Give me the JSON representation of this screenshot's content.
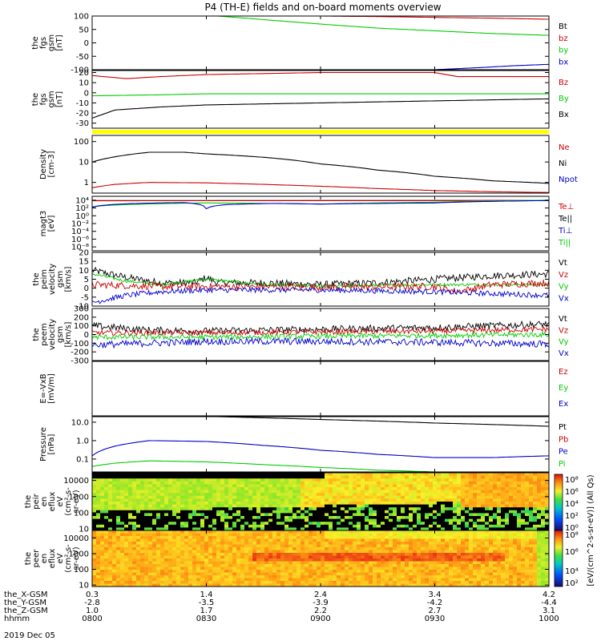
{
  "title": "P4 (TH-E) fields and on-board moments overview",
  "date": "2019 Dec 05",
  "footer": {
    "rows": [
      {
        "label": "the_X-GSM",
        "values": [
          "0.3",
          "1.4",
          "2.4",
          "3.4",
          "4.2"
        ]
      },
      {
        "label": "the_Y-GSM",
        "values": [
          "-2.8",
          "-3.5",
          "-3.9",
          "-4.2",
          "-4.4"
        ]
      },
      {
        "label": "the_Z-GSM",
        "values": [
          "1.0",
          "1.7",
          "2.2",
          "2.7",
          "3.1"
        ]
      },
      {
        "label": "hhmm",
        "values": [
          "0800",
          "0830",
          "0900",
          "0930",
          "1000"
        ]
      }
    ]
  },
  "colors": {
    "black": "#000000",
    "red": "#cc0000",
    "green": "#00cc00",
    "blue": "#0000cc",
    "yellow": "#ffff00"
  },
  "chart_data": [
    {
      "type": "line",
      "id": "p1",
      "ylabel": [
        "the",
        "fgs",
        "gsm",
        "[nT]"
      ],
      "ylim": [
        -100,
        100
      ],
      "ticks": [
        "100",
        "50",
        "0",
        "-50",
        "-100"
      ],
      "tickvals": [
        100,
        50,
        0,
        -50,
        -100
      ],
      "legend": [
        {
          "name": "Bt",
          "color": "#000000"
        },
        {
          "name": "bz",
          "color": "#cc0000"
        },
        {
          "name": "by",
          "color": "#00cc00"
        },
        {
          "name": "bx",
          "color": "#0000cc"
        }
      ],
      "x_hours": [
        8.0,
        8.5,
        9.0,
        9.5,
        10.0
      ],
      "series": [
        {
          "name": "by",
          "color": "#00cc00",
          "x": [
            8.55,
            9.0,
            9.25,
            9.5,
            9.75,
            10.0
          ],
          "y": [
            100,
            70,
            55,
            45,
            35,
            28
          ]
        },
        {
          "name": "bz",
          "color": "#cc0000",
          "x": [
            9.0,
            9.25,
            9.5,
            9.75,
            10.0
          ],
          "y": [
            100,
            98,
            95,
            92,
            88
          ]
        },
        {
          "name": "bx",
          "color": "#0000cc",
          "x": [
            9.5,
            9.7,
            9.85,
            10.0
          ],
          "y": [
            -100,
            -92,
            -85,
            -80
          ]
        }
      ]
    },
    {
      "type": "line",
      "id": "p2",
      "ylabel": [
        "the",
        "fgs",
        "gsm",
        "[nT]"
      ],
      "ylim": [
        -35,
        22
      ],
      "ticks": [
        "20",
        "10",
        "0",
        "-10",
        "-20",
        "-30"
      ],
      "tickvals": [
        20,
        10,
        0,
        -10,
        -20,
        -30
      ],
      "legend": [
        {
          "name": "Bz",
          "color": "#cc0000"
        },
        {
          "name": "By",
          "color": "#00cc00"
        },
        {
          "name": "Bx",
          "color": "#000000"
        }
      ],
      "series": [
        {
          "name": "Bz",
          "color": "#cc0000",
          "x": [
            8.0,
            8.15,
            8.3,
            8.5,
            9.0,
            9.5,
            9.6,
            10.0
          ],
          "y": [
            17,
            14,
            16,
            18,
            20,
            20,
            16,
            16
          ]
        },
        {
          "name": "By",
          "color": "#00cc00",
          "x": [
            8.0,
            8.3,
            8.5,
            9.0,
            9.5,
            10.0
          ],
          "y": [
            -3,
            -2,
            -1,
            -1,
            -1,
            -1
          ]
        },
        {
          "name": "Bx",
          "color": "#000000",
          "x": [
            8.0,
            8.1,
            8.3,
            8.5,
            9.0,
            9.5,
            10.0
          ],
          "y": [
            -25,
            -17,
            -14,
            -12,
            -10,
            -8,
            -6
          ]
        }
      ]
    },
    {
      "type": "line",
      "id": "p3",
      "ylabel": [
        "Density",
        "[cm-3]"
      ],
      "log": true,
      "ylim": [
        0.3,
        200
      ],
      "ticks": [
        "100",
        "10",
        "1"
      ],
      "tickvals": [
        100,
        10,
        1
      ],
      "legend": [
        {
          "name": "Ne",
          "color": "#cc0000"
        },
        {
          "name": "Ni",
          "color": "#000000"
        },
        {
          "name": "Npot",
          "color": "#0000cc"
        }
      ],
      "series": [
        {
          "name": "Ni",
          "color": "#000000",
          "x": [
            8.0,
            8.1,
            8.25,
            8.4,
            8.5,
            8.75,
            9.0,
            9.25,
            9.5,
            9.75,
            10.0
          ],
          "y": [
            10,
            18,
            30,
            30,
            25,
            17,
            8,
            4,
            2,
            1.2,
            0.9
          ]
        },
        {
          "name": "Ne",
          "color": "#cc0000",
          "x": [
            8.0,
            8.1,
            8.25,
            8.5,
            8.75,
            9.0,
            9.25,
            9.5,
            9.75,
            10.0
          ],
          "y": [
            0.55,
            0.8,
            1.0,
            0.95,
            0.8,
            0.65,
            0.5,
            0.4,
            0.35,
            0.32
          ]
        }
      ]
    },
    {
      "type": "line",
      "id": "p4",
      "ylabel": [
        "magt3",
        "[eV]"
      ],
      "log": true,
      "ylim": [
        1e-09,
        100000.0
      ],
      "ticks": [
        "10⁴",
        "10²",
        "10⁰",
        "10⁻²",
        "10⁻⁴",
        "10⁻⁶",
        "10⁻⁸"
      ],
      "tickvals": [
        10000.0,
        100.0,
        1,
        0.01,
        0.0001,
        1e-06,
        1e-08
      ],
      "legend": [
        {
          "name": "Te⊥",
          "color": "#cc0000"
        },
        {
          "name": "Te||",
          "color": "#000000"
        },
        {
          "name": "Ti⊥",
          "color": "#0000cc"
        },
        {
          "name": "Ti||",
          "color": "#00cc00"
        }
      ],
      "series": [
        {
          "name": "Te",
          "color": "#000000",
          "x": [
            8.0,
            10.0
          ],
          "y": [
            8000,
            8000
          ]
        },
        {
          "name": "Te⊥",
          "color": "#cc0000",
          "x": [
            8.0,
            9.0,
            10.0
          ],
          "y": [
            7000,
            8000,
            9000
          ]
        },
        {
          "name": "Ti",
          "color": "#00cc00",
          "x": [
            8.0,
            8.5,
            9.0,
            9.5,
            10.0
          ],
          "y": [
            200,
            2000,
            1000,
            3000,
            10000
          ]
        },
        {
          "name": "Ti⊥",
          "color": "#0000cc",
          "x": [
            8.0,
            8.2,
            8.4,
            8.5,
            8.6,
            8.8,
            9.0,
            9.5,
            10.0
          ],
          "y": [
            150,
            1500,
            2500,
            60,
            800,
            1500,
            1000,
            2000,
            8000
          ]
        }
      ]
    },
    {
      "type": "line",
      "id": "p5",
      "ylabel": [
        "the",
        "peim",
        "velocity",
        "gsm",
        "[km/s]"
      ],
      "ylim": [
        -10,
        20
      ],
      "ticks": [
        "20",
        "15",
        "10",
        "5",
        "0",
        "-5",
        "-10"
      ],
      "tickvals": [
        20,
        15,
        10,
        5,
        0,
        -5,
        -10
      ],
      "legend": [
        {
          "name": "Vt",
          "color": "#000000"
        },
        {
          "name": "Vz",
          "color": "#cc0000"
        },
        {
          "name": "Vy",
          "color": "#00cc00"
        },
        {
          "name": "Vx",
          "color": "#0000cc"
        }
      ],
      "series": [
        {
          "name": "Vt",
          "color": "#000000",
          "x": [
            8.0,
            8.15,
            8.3,
            8.45,
            8.5,
            8.55,
            8.75,
            9.0,
            9.25,
            9.5,
            9.75,
            10.0
          ],
          "y": [
            10,
            6,
            3,
            3,
            6,
            3,
            3,
            2,
            3,
            5,
            7,
            8
          ],
          "noise": 2.0
        },
        {
          "name": "Vy",
          "color": "#00cc00",
          "x": [
            8.0,
            8.15,
            8.3,
            8.5,
            8.75,
            9.0,
            9.5,
            10.0
          ],
          "y": [
            8,
            4,
            2,
            5,
            2,
            1,
            2,
            2
          ],
          "noise": 0.8
        },
        {
          "name": "Vz",
          "color": "#cc0000",
          "x": [
            8.0,
            8.3,
            8.5,
            9.0,
            9.5,
            9.6,
            9.75,
            10.0
          ],
          "y": [
            2,
            1,
            1,
            0.5,
            1,
            -2,
            2,
            3
          ],
          "noise": 2.0
        },
        {
          "name": "Vx",
          "color": "#0000cc",
          "x": [
            8.0,
            8.15,
            8.3,
            8.5,
            9.0,
            9.5,
            10.0
          ],
          "y": [
            -8,
            -4,
            -2,
            -1,
            -1,
            -2,
            -4
          ],
          "noise": 1.5
        }
      ]
    },
    {
      "type": "line",
      "id": "p6",
      "ylabel": [
        "the",
        "peem",
        "velocity",
        "gsm",
        "[km/s]"
      ],
      "ylim": [
        -300,
        300
      ],
      "ticks": [
        "300",
        "200",
        "100",
        "0",
        "-100",
        "-200",
        "-300"
      ],
      "tickvals": [
        300,
        200,
        100,
        0,
        -100,
        -200,
        -300
      ],
      "legend": [
        {
          "name": "Vt",
          "color": "#000000"
        },
        {
          "name": "Vz",
          "color": "#cc0000"
        },
        {
          "name": "Vy",
          "color": "#00cc00"
        },
        {
          "name": "Vx",
          "color": "#0000cc"
        }
      ],
      "series": [
        {
          "name": "Vt",
          "color": "#000000",
          "x": [
            8.0,
            8.25,
            8.5,
            9.0,
            9.5,
            10.0
          ],
          "y": [
            100,
            50,
            40,
            60,
            80,
            120
          ],
          "noise": 40
        },
        {
          "name": "Vz",
          "color": "#cc0000",
          "x": [
            8.0,
            8.5,
            9.0,
            9.5,
            10.0
          ],
          "y": [
            20,
            20,
            30,
            40,
            60
          ],
          "noise": 30
        },
        {
          "name": "Vy",
          "color": "#00cc00",
          "x": [
            8.0,
            8.5,
            9.0,
            9.5,
            10.0
          ],
          "y": [
            -30,
            -30,
            -20,
            -10,
            0
          ],
          "noise": 30
        },
        {
          "name": "Vx",
          "color": "#0000cc",
          "x": [
            8.0,
            8.5,
            9.0,
            9.5,
            10.0
          ],
          "y": [
            -120,
            -80,
            -80,
            -90,
            -110
          ],
          "noise": 40
        }
      ]
    },
    {
      "type": "line",
      "id": "p7",
      "ylabel": [
        "E=-VxB",
        "[mV/m]"
      ],
      "ylim": [
        0,
        1
      ],
      "ticks": [],
      "tickvals": [],
      "legend": [
        {
          "name": "Ez",
          "color": "#cc0000"
        },
        {
          "name": "Ey",
          "color": "#00cc00"
        },
        {
          "name": "Ex",
          "color": "#0000cc"
        }
      ],
      "series": []
    },
    {
      "type": "line",
      "id": "p8",
      "ylabel": [
        "Pressure",
        "[nPa]"
      ],
      "log": true,
      "ylim": [
        0.02,
        20
      ],
      "ticks": [
        "10.0",
        "1.0",
        "0.1"
      ],
      "tickvals": [
        10,
        1,
        0.1
      ],
      "legend": [
        {
          "name": "Pt",
          "color": "#000000"
        },
        {
          "name": "Pb",
          "color": "#cc0000"
        },
        {
          "name": "Pe",
          "color": "#0000cc"
        },
        {
          "name": "Pi",
          "color": "#00cc00"
        }
      ],
      "series": [
        {
          "name": "Pt",
          "color": "#000000",
          "x": [
            8.55,
            9.0,
            9.5,
            10.0
          ],
          "y": [
            20,
            14,
            9,
            6
          ]
        },
        {
          "name": "Pe",
          "color": "#0000cc",
          "x": [
            8.0,
            8.1,
            8.25,
            8.5,
            8.75,
            9.0,
            9.25,
            9.5,
            9.75,
            10.0
          ],
          "y": [
            0.15,
            0.5,
            1.0,
            0.9,
            0.55,
            0.3,
            0.18,
            0.12,
            0.12,
            0.15
          ]
        },
        {
          "name": "Pi",
          "color": "#00cc00",
          "x": [
            8.0,
            8.1,
            8.25,
            8.5,
            8.75,
            9.0,
            9.25,
            9.5,
            10.0
          ],
          "y": [
            0.04,
            0.06,
            0.08,
            0.07,
            0.05,
            0.035,
            0.025,
            0.02,
            0.02
          ]
        }
      ]
    },
    {
      "type": "heatmap",
      "id": "p9",
      "ylabel": [
        "the",
        "peir",
        "en",
        "eflux",
        "eV",
        "(cm²-s-",
        "sr-eV)"
      ],
      "log": true,
      "ylim": [
        8,
        30000
      ],
      "ticks": [
        "10000",
        "1000",
        "100",
        "10"
      ],
      "tickvals": [
        10000,
        1000,
        100,
        10
      ]
    },
    {
      "type": "heatmap",
      "id": "p10",
      "ylabel": [
        "the",
        "peer",
        "en",
        "eflux",
        "eV",
        "(cm²-s-",
        "sr-eV)"
      ],
      "log": true,
      "ylim": [
        8,
        30000
      ],
      "ticks": [
        "10000",
        "1000",
        "100",
        "10"
      ],
      "tickvals": [
        10000,
        1000,
        100,
        10
      ]
    }
  ],
  "colorbar": {
    "unit_label": "[eV/(cm^2-s-sr-eV)] (All Qs)",
    "ticks": [
      "10⁸",
      "10⁶",
      "10⁴",
      "10²",
      "10⁰",
      "10⁸",
      "10⁶",
      "10⁴",
      "10²"
    ]
  }
}
